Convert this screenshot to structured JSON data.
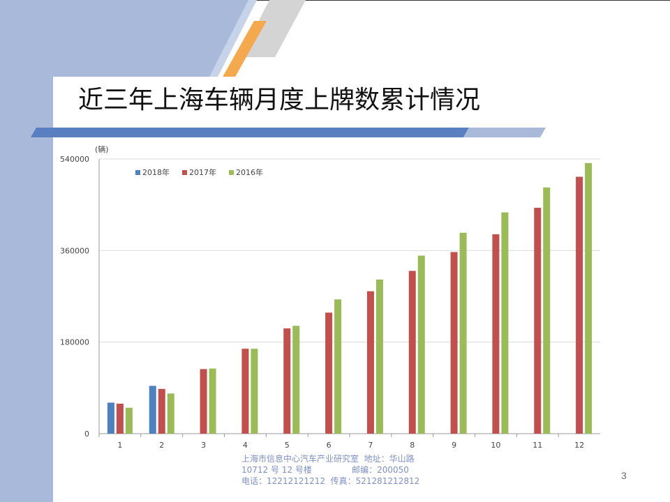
{
  "slide": {
    "title": "近三年上海车辆月度上牌数累计情况",
    "footer_lines": [
      "上海市信息中心汽车产业研究室  地址：华山路",
      "10712 号 12 号楼               邮编：200050",
      "电话：12212121212  传真：521281212812"
    ],
    "page_number": "3"
  },
  "chart_data": {
    "type": "bar",
    "unit_label": "(辆)",
    "categories": [
      "1",
      "2",
      "3",
      "4",
      "5",
      "6",
      "7",
      "8",
      "9",
      "10",
      "11",
      "12"
    ],
    "series": [
      {
        "name": "2018年",
        "color": "#4f81bd",
        "values": [
          61000,
          94000,
          null,
          null,
          null,
          null,
          null,
          null,
          null,
          null,
          null,
          null
        ]
      },
      {
        "name": "2017年",
        "color": "#c0504d",
        "values": [
          59000,
          88000,
          127000,
          167000,
          207000,
          238000,
          280000,
          320000,
          357000,
          392000,
          444000,
          505000
        ]
      },
      {
        "name": "2016年",
        "color": "#9bbb59",
        "values": [
          51000,
          79000,
          128000,
          167000,
          212000,
          264000,
          303000,
          350000,
          395000,
          435000,
          484000,
          532000
        ]
      }
    ],
    "ylim": [
      0,
      540000
    ],
    "yticks": [
      0,
      180000,
      360000,
      540000
    ],
    "ytick_labels": [
      "0",
      "180000",
      "360000",
      "540000"
    ],
    "grid": true,
    "legend": "top-left"
  }
}
